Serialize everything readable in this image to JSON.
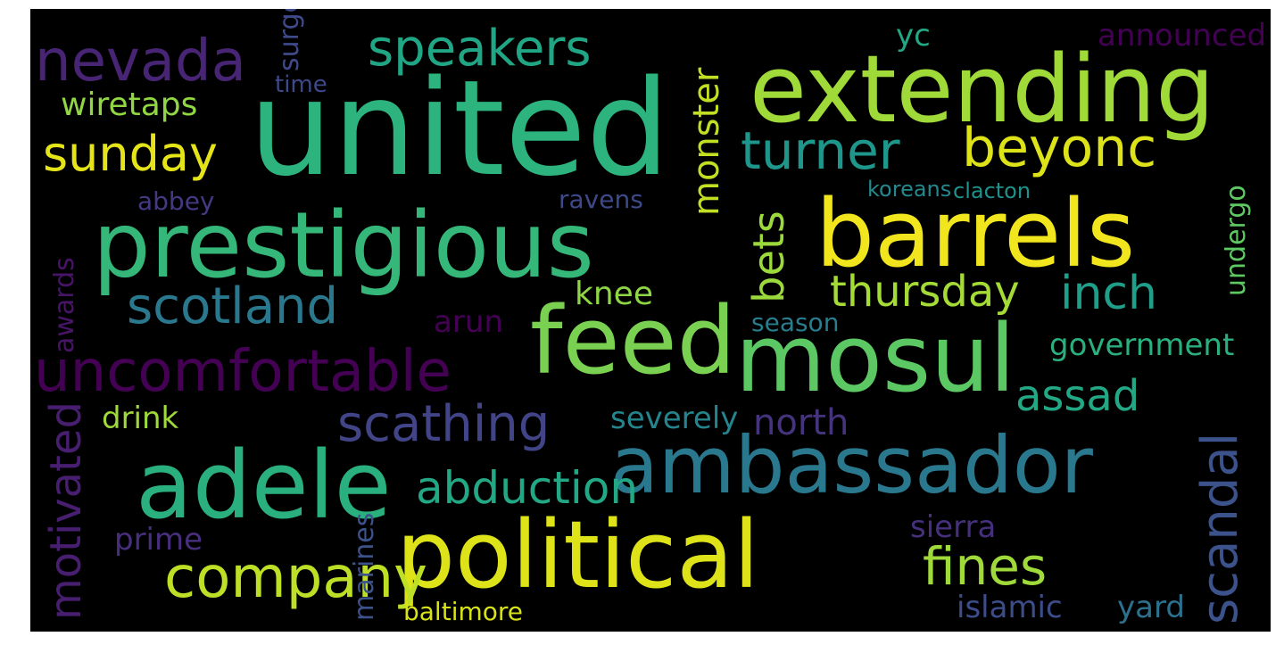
{
  "words": [
    {
      "text": "united",
      "color": "#2db37d"
    },
    {
      "text": "extending",
      "color": "#a0da39"
    },
    {
      "text": "prestigious",
      "color": "#35b779"
    },
    {
      "text": "barrels",
      "color": "#f1e51d"
    },
    {
      "text": "feed",
      "color": "#7ad151"
    },
    {
      "text": "mosul",
      "color": "#5cc863"
    },
    {
      "text": "adele",
      "color": "#2ab07f"
    },
    {
      "text": "ambassador",
      "color": "#2a788e"
    },
    {
      "text": "political",
      "color": "#dde318"
    },
    {
      "text": "nevada",
      "color": "#482474"
    },
    {
      "text": "speakers",
      "color": "#21a685"
    },
    {
      "text": "sunday",
      "color": "#e5e419"
    },
    {
      "text": "turner",
      "color": "#1f968b"
    },
    {
      "text": "beyonc",
      "color": "#dde318"
    },
    {
      "text": "scotland",
      "color": "#2a788e"
    },
    {
      "text": "uncomfortable",
      "color": "#440154"
    },
    {
      "text": "thursday",
      "color": "#a5db36"
    },
    {
      "text": "inch",
      "color": "#1f9e89"
    },
    {
      "text": "scathing",
      "color": "#414487"
    },
    {
      "text": "assad",
      "color": "#22a884"
    },
    {
      "text": "abduction",
      "color": "#22a884"
    },
    {
      "text": "company",
      "color": "#bddf26"
    },
    {
      "text": "fines",
      "color": "#9fda3a"
    },
    {
      "text": "north",
      "color": "#46337e"
    },
    {
      "text": "scandal",
      "color": "#3b528b"
    },
    {
      "text": "motivated",
      "color": "#481f70"
    },
    {
      "text": "monster",
      "color": "#c2df23"
    },
    {
      "text": "bets",
      "color": "#9bd93c"
    },
    {
      "text": "surgeon",
      "color": "#3e4a89"
    },
    {
      "text": "undergo",
      "color": "#5ec962"
    },
    {
      "text": "awards",
      "color": "#481467"
    },
    {
      "text": "marines",
      "color": "#3b528b"
    },
    {
      "text": "yc",
      "color": "#22a884"
    },
    {
      "text": "announced",
      "color": "#440154"
    },
    {
      "text": "wiretaps",
      "color": "#90d743"
    },
    {
      "text": "time",
      "color": "#3e4989"
    },
    {
      "text": "abbey",
      "color": "#443983"
    },
    {
      "text": "ravens",
      "color": "#3e4989"
    },
    {
      "text": "koreans",
      "color": "#23898e"
    },
    {
      "text": "clacton",
      "color": "#20928c"
    },
    {
      "text": "knee",
      "color": "#8ed645"
    },
    {
      "text": "arun",
      "color": "#440154"
    },
    {
      "text": "season",
      "color": "#287d8e"
    },
    {
      "text": "government",
      "color": "#2ab07f"
    },
    {
      "text": "drink",
      "color": "#9fda3a"
    },
    {
      "text": "severely",
      "color": "#25858e"
    },
    {
      "text": "sierra",
      "color": "#46307e"
    },
    {
      "text": "prime",
      "color": "#472f7d"
    },
    {
      "text": "islamic",
      "color": "#3d4d8a"
    },
    {
      "text": "yard",
      "color": "#2c728e"
    },
    {
      "text": "baltimore",
      "color": "#d8e219"
    }
  ]
}
